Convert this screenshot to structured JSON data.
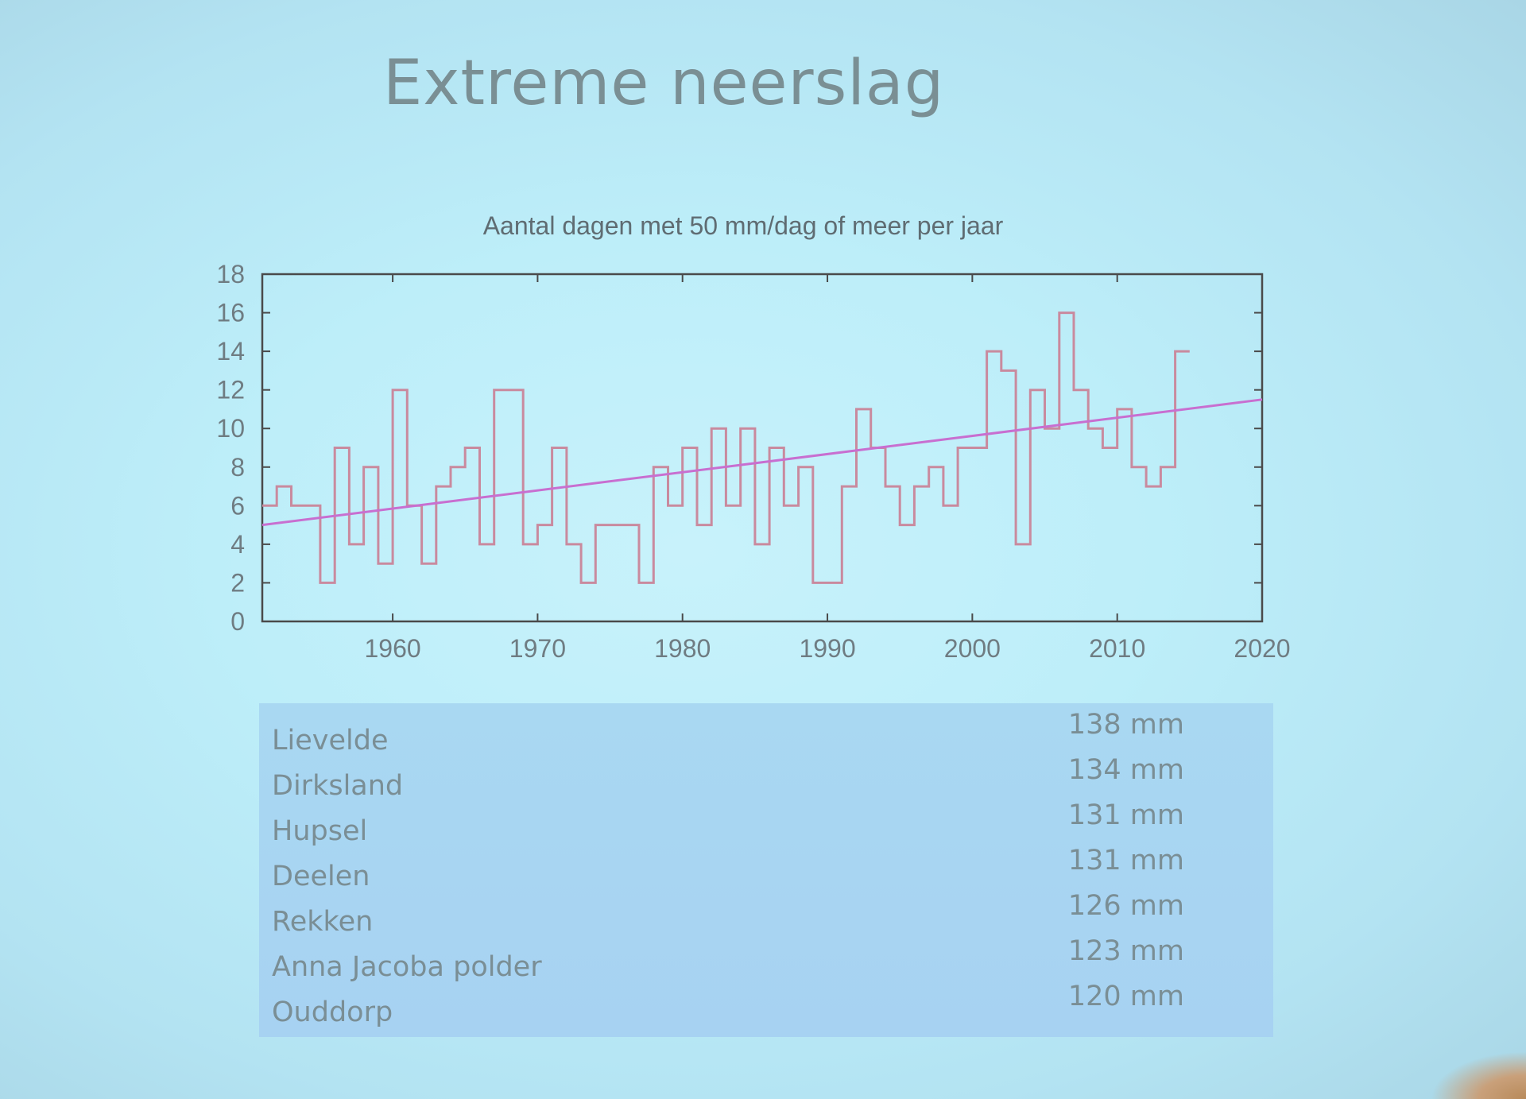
{
  "slide": {
    "title": "Extreme neerslag"
  },
  "chart_data": {
    "type": "line",
    "title": "Aantal dagen met 50 mm/dag of meer per jaar",
    "xlabel": "",
    "ylabel": "",
    "xlim": [
      1951,
      2020
    ],
    "ylim": [
      0,
      18
    ],
    "x_ticks": [
      "1960",
      "1970",
      "1980",
      "1990",
      "2000",
      "2010",
      "2020"
    ],
    "y_ticks": [
      "0",
      "2",
      "4",
      "6",
      "8",
      "10",
      "12",
      "14",
      "16",
      "18"
    ],
    "grid": false,
    "legend": "none",
    "series": [
      {
        "style": "step",
        "color": "#c98a9e",
        "x": [
          1951,
          1952,
          1953,
          1954,
          1955,
          1956,
          1957,
          1958,
          1959,
          1960,
          1961,
          1962,
          1963,
          1964,
          1965,
          1966,
          1967,
          1968,
          1969,
          1970,
          1971,
          1972,
          1973,
          1974,
          1975,
          1976,
          1977,
          1978,
          1979,
          1980,
          1981,
          1982,
          1983,
          1984,
          1985,
          1986,
          1987,
          1988,
          1989,
          1990,
          1991,
          1992,
          1993,
          1994,
          1995,
          1996,
          1997,
          1998,
          1999,
          2000,
          2001,
          2002,
          2003,
          2004,
          2005,
          2006,
          2007,
          2008,
          2009,
          2010,
          2011,
          2012,
          2013,
          2014
        ],
        "values": [
          6,
          7,
          6,
          6,
          2,
          9,
          4,
          8,
          3,
          12,
          6,
          3,
          7,
          8,
          9,
          4,
          12,
          12,
          4,
          5,
          9,
          4,
          2,
          5,
          5,
          5,
          2,
          8,
          6,
          9,
          5,
          10,
          6,
          10,
          4,
          9,
          6,
          8,
          2,
          2,
          7,
          11,
          9,
          7,
          5,
          7,
          8,
          6,
          9,
          9,
          14,
          13,
          4,
          12,
          10,
          16,
          12,
          10,
          9,
          11,
          8,
          7,
          8,
          14
        ]
      },
      {
        "style": "trend",
        "color": "#c86fd0",
        "x": [
          1951,
          2020
        ],
        "values": [
          5.0,
          11.5
        ]
      }
    ]
  },
  "stations": [
    {
      "name": "Lievelde",
      "value": "138 mm"
    },
    {
      "name": "Dirksland",
      "value": "134 mm"
    },
    {
      "name": "Hupsel",
      "value": "131 mm"
    },
    {
      "name": "Deelen",
      "value": "131 mm"
    },
    {
      "name": "Rekken",
      "value": "126 mm"
    },
    {
      "name": "Anna Jacoba polder",
      "value": "123 mm"
    },
    {
      "name": "Ouddorp",
      "value": "120 mm"
    }
  ]
}
